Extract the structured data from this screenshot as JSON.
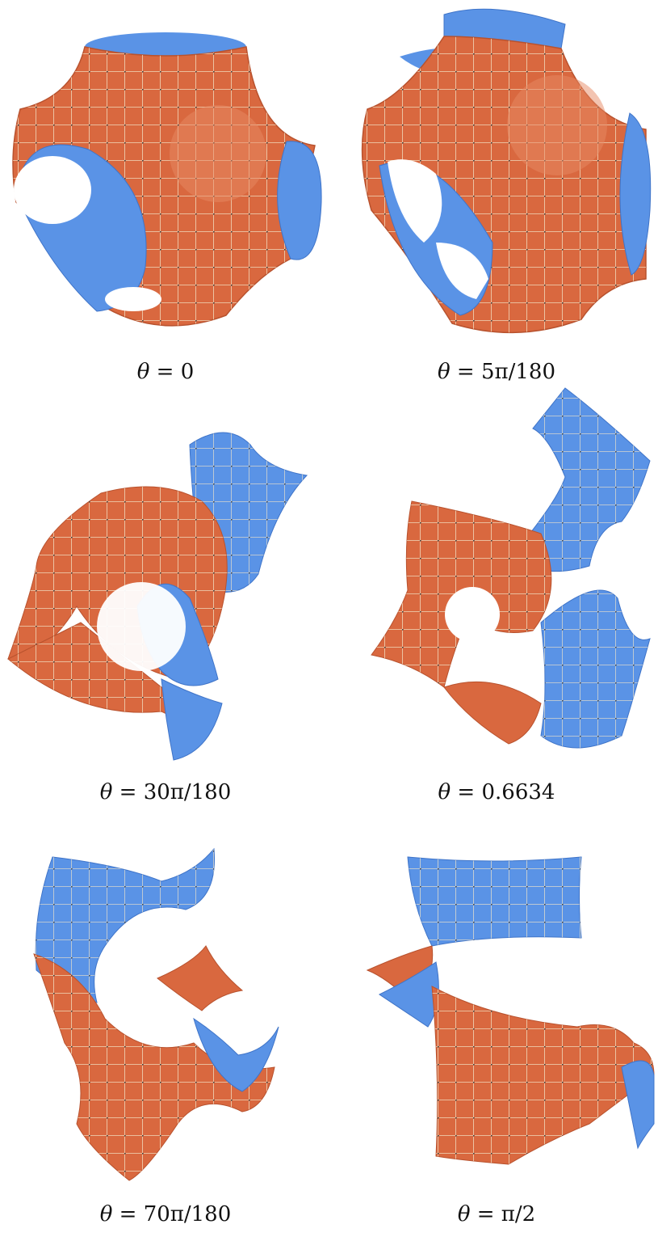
{
  "captions": [
    {
      "theta": "θ",
      "eq": " = ",
      "value": "0"
    },
    {
      "theta": "θ",
      "eq": " = ",
      "value": "5π/180"
    },
    {
      "theta": "θ",
      "eq": " = ",
      "value": "30π/180"
    },
    {
      "theta": "θ",
      "eq": " = ",
      "value": "0.6634"
    },
    {
      "theta": "θ",
      "eq": " = ",
      "value": "70π/180"
    },
    {
      "theta": "θ",
      "eq": " = ",
      "value": "π/2"
    }
  ],
  "colors": {
    "outer_surface": "#d9683f",
    "outer_surface_dark": "#b8522e",
    "inner_surface": "#5a93e6",
    "inner_surface_dark": "#3f74c8",
    "grid_line": "#f3e6c8",
    "grid_node": "#3b3b3b"
  },
  "figure": {
    "panels": [
      {
        "name": "surface-theta-0"
      },
      {
        "name": "surface-theta-5pi-180"
      },
      {
        "name": "surface-theta-30pi-180"
      },
      {
        "name": "surface-theta-0-6634"
      },
      {
        "name": "surface-theta-70pi-180"
      },
      {
        "name": "surface-theta-pi-2"
      }
    ]
  }
}
